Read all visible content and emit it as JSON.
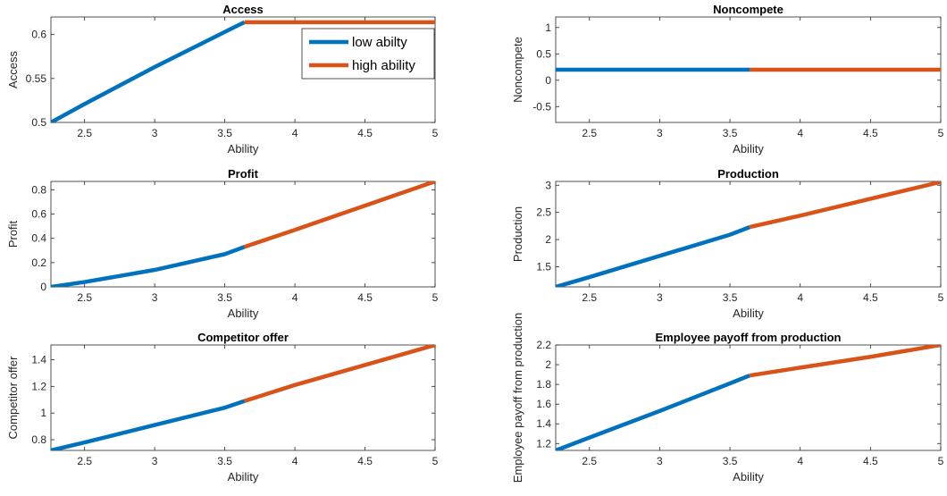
{
  "colors": {
    "low": "#0072BD",
    "high": "#D95319",
    "axis": "#262626",
    "background": "#ffffff"
  },
  "legend": {
    "placement": "top-right of Access panel",
    "items": [
      {
        "label": "low abilty",
        "series": "low"
      },
      {
        "label": "high ability",
        "series": "high"
      }
    ]
  },
  "chart_data": [
    {
      "id": "access",
      "type": "line",
      "title": "Access",
      "xlabel": "Ability",
      "ylabel": "Access",
      "xlim": [
        2.26,
        5
      ],
      "ylim": [
        0.5,
        0.62
      ],
      "xticks": [
        2.5,
        3,
        3.5,
        4,
        4.5,
        5
      ],
      "xtick_labels": [
        "2.5",
        "3",
        "3.5",
        "4",
        "4.5",
        "5"
      ],
      "yticks": [
        0.5,
        0.55,
        0.6
      ],
      "ytick_labels": [
        "0.5",
        "0.55",
        "0.6"
      ],
      "grid": false,
      "legend": true,
      "series": [
        {
          "key": "low",
          "name": "low abilty",
          "x": [
            2.26,
            2.5,
            3.0,
            3.5,
            3.64
          ],
          "y": [
            0.5,
            0.521,
            0.563,
            0.603,
            0.614
          ]
        },
        {
          "key": "high",
          "name": "high ability",
          "x": [
            3.64,
            4.0,
            4.5,
            5.0
          ],
          "y": [
            0.614,
            0.614,
            0.614,
            0.614
          ]
        }
      ]
    },
    {
      "id": "noncompete",
      "type": "line",
      "title": "Noncompete",
      "xlabel": "Ability",
      "ylabel": "Noncompete",
      "xlim": [
        2.26,
        5
      ],
      "ylim": [
        -0.8,
        1.2
      ],
      "xticks": [
        2.5,
        3,
        3.5,
        4,
        4.5,
        5
      ],
      "xtick_labels": [
        "2.5",
        "3",
        "3.5",
        "4",
        "4.5",
        "5"
      ],
      "yticks": [
        -0.5,
        0,
        0.5,
        1
      ],
      "ytick_labels": [
        "-0.5",
        "0",
        "0.5",
        "1"
      ],
      "grid": false,
      "legend": false,
      "series": [
        {
          "key": "low",
          "x": [
            2.26,
            3.64
          ],
          "y": [
            0.2,
            0.2
          ]
        },
        {
          "key": "high",
          "x": [
            3.64,
            5.0
          ],
          "y": [
            0.2,
            0.2
          ]
        }
      ]
    },
    {
      "id": "profit",
      "type": "line",
      "title": "Profit",
      "xlabel": "Ability",
      "ylabel": "Profit",
      "xlim": [
        2.26,
        5
      ],
      "ylim": [
        0,
        0.87
      ],
      "xticks": [
        2.5,
        3,
        3.5,
        4,
        4.5,
        5
      ],
      "xtick_labels": [
        "2.5",
        "3",
        "3.5",
        "4",
        "4.5",
        "5"
      ],
      "yticks": [
        0,
        0.2,
        0.4,
        0.6,
        0.8
      ],
      "ytick_labels": [
        "0",
        "0.2",
        "0.4",
        "0.6",
        "0.8"
      ],
      "grid": false,
      "legend": false,
      "series": [
        {
          "key": "low",
          "x": [
            2.26,
            2.5,
            3.0,
            3.5,
            3.64
          ],
          "y": [
            0.0,
            0.04,
            0.14,
            0.27,
            0.33
          ]
        },
        {
          "key": "high",
          "x": [
            3.64,
            4.0,
            4.5,
            5.0
          ],
          "y": [
            0.33,
            0.47,
            0.67,
            0.87
          ]
        }
      ]
    },
    {
      "id": "production",
      "type": "line",
      "title": "Production",
      "xlabel": "Ability",
      "ylabel": "Production",
      "xlim": [
        2.26,
        5
      ],
      "ylim": [
        1.13,
        3.07
      ],
      "xticks": [
        2.5,
        3,
        3.5,
        4,
        4.5,
        5
      ],
      "xtick_labels": [
        "2.5",
        "3",
        "3.5",
        "4",
        "4.5",
        "5"
      ],
      "yticks": [
        1.5,
        2,
        2.5,
        3
      ],
      "ytick_labels": [
        "1.5",
        "2",
        "2.5",
        "3"
      ],
      "grid": false,
      "legend": false,
      "series": [
        {
          "key": "low",
          "x": [
            2.26,
            2.5,
            3.0,
            3.5,
            3.64
          ],
          "y": [
            1.13,
            1.31,
            1.7,
            2.09,
            2.23
          ]
        },
        {
          "key": "high",
          "x": [
            3.64,
            4.0,
            4.5,
            5.0
          ],
          "y": [
            2.23,
            2.44,
            2.75,
            3.06
          ]
        }
      ]
    },
    {
      "id": "competitor-offer",
      "type": "line",
      "title": "Competitor offer",
      "xlabel": "Ability",
      "ylabel": "Competitor offer",
      "xlim": [
        2.26,
        5
      ],
      "ylim": [
        0.72,
        1.51
      ],
      "xticks": [
        2.5,
        3,
        3.5,
        4,
        4.5,
        5
      ],
      "xtick_labels": [
        "2.5",
        "3",
        "3.5",
        "4",
        "4.5",
        "5"
      ],
      "yticks": [
        0.8,
        1,
        1.2,
        1.4
      ],
      "ytick_labels": [
        "0.8",
        "1",
        "1.2",
        "1.4"
      ],
      "grid": false,
      "legend": false,
      "series": [
        {
          "key": "low",
          "x": [
            2.26,
            2.5,
            3.0,
            3.5,
            3.64
          ],
          "y": [
            0.72,
            0.78,
            0.91,
            1.04,
            1.09
          ]
        },
        {
          "key": "high",
          "x": [
            3.64,
            4.0,
            4.5,
            5.0
          ],
          "y": [
            1.09,
            1.21,
            1.36,
            1.51
          ]
        }
      ]
    },
    {
      "id": "employee-payoff",
      "type": "line",
      "title": "Employee payoff from production",
      "xlabel": "Ability",
      "ylabel": "Employee payoff from production",
      "xlim": [
        2.26,
        5
      ],
      "ylim": [
        1.13,
        2.2
      ],
      "xticks": [
        2.5,
        3,
        3.5,
        4,
        4.5,
        5
      ],
      "xtick_labels": [
        "2.5",
        "3",
        "3.5",
        "4",
        "4.5",
        "5"
      ],
      "yticks": [
        1.2,
        1.4,
        1.6,
        1.8,
        2,
        2.2
      ],
      "ytick_labels": [
        "1.2",
        "1.4",
        "1.6",
        "1.8",
        "2",
        "2.2"
      ],
      "grid": false,
      "legend": false,
      "series": [
        {
          "key": "low",
          "x": [
            2.26,
            2.5,
            3.0,
            3.5,
            3.64
          ],
          "y": [
            1.13,
            1.26,
            1.53,
            1.81,
            1.89
          ]
        },
        {
          "key": "high",
          "x": [
            3.64,
            4.0,
            4.5,
            5.0
          ],
          "y": [
            1.89,
            1.97,
            2.08,
            2.2
          ]
        }
      ]
    }
  ]
}
